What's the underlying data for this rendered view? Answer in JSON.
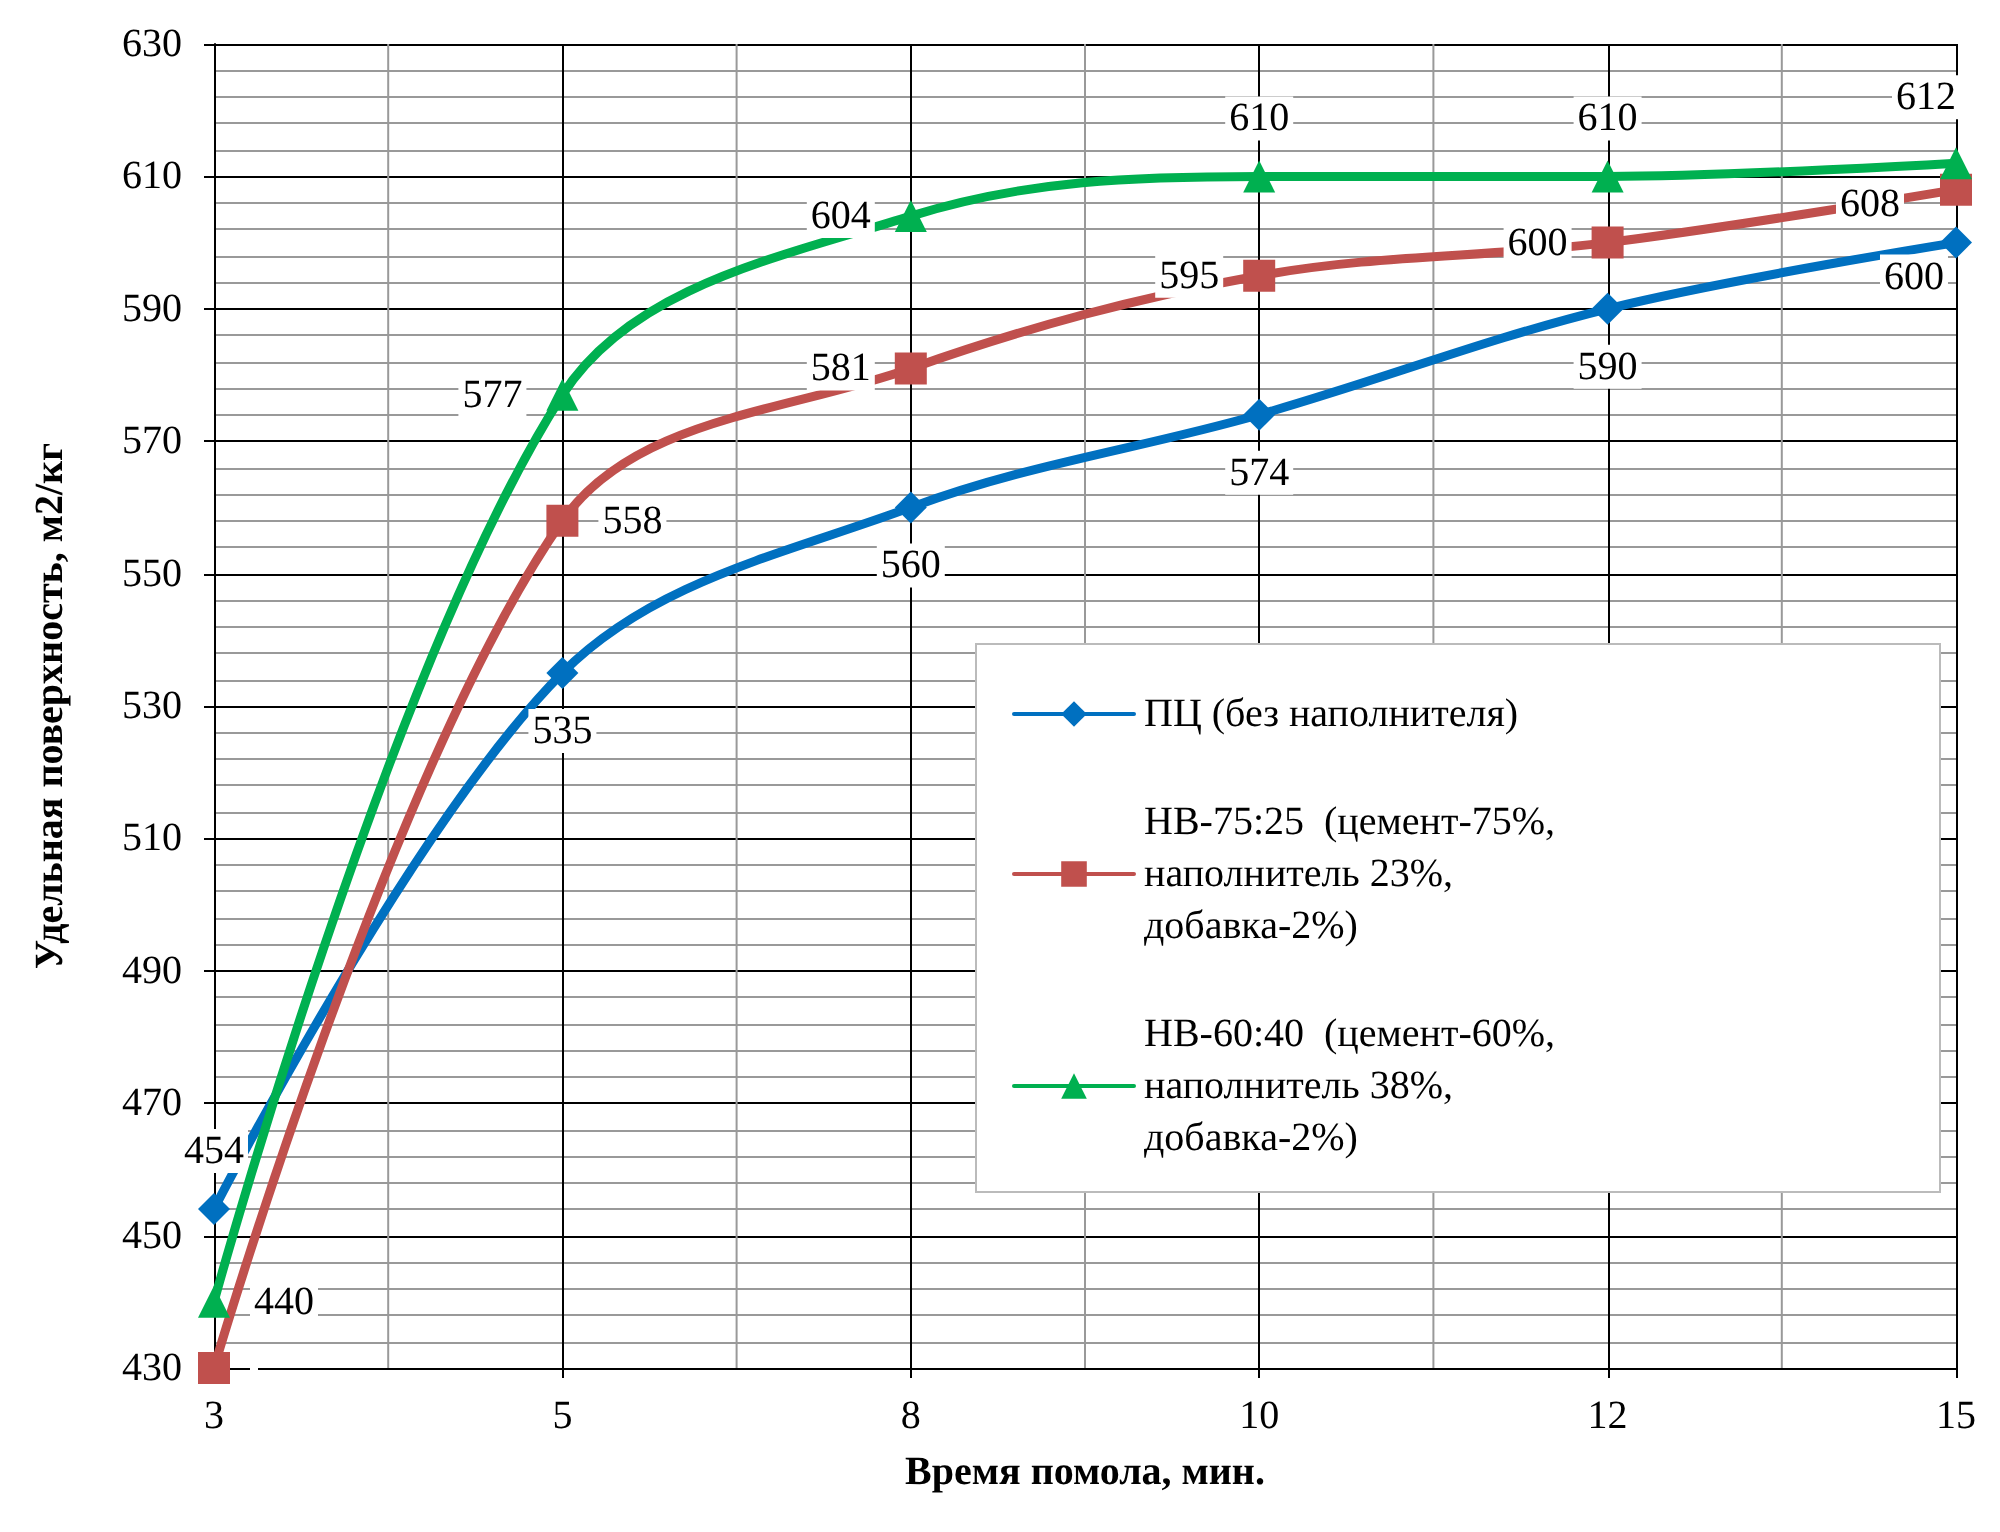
{
  "chart_data": {
    "type": "line",
    "xlabel": "Время помола, мин.",
    "ylabel": "Удельная поверхность, м2/кг",
    "categories": [
      "3",
      "5",
      "8",
      "10",
      "12",
      "15"
    ],
    "series": [
      {
        "name": "ПЦ (без наполнителя)",
        "color": "#0070c0",
        "marker": "diamond",
        "values": [
          454,
          535,
          560,
          574,
          590,
          600
        ],
        "value_labels": [
          "454",
          "535",
          "560",
          "574",
          "590",
          "600"
        ]
      },
      {
        "name": "НВ-75:25  (цемент-75%, наполнитель 23%, добавка-2%)",
        "color": "#c0504d",
        "marker": "square",
        "values": [
          430,
          558,
          581,
          595,
          600,
          608
        ],
        "value_labels": [
          null,
          "558",
          "581",
          "595",
          "600",
          "608"
        ]
      },
      {
        "name": "НВ-60:40  (цемент-60%, наполнитель 38%, добавка-2%)",
        "color": "#00b050",
        "marker": "triangle",
        "values": [
          440,
          577,
          604,
          610,
          610,
          612
        ],
        "value_labels": [
          "440",
          "577",
          "604",
          "610",
          "610",
          "612"
        ]
      }
    ],
    "ylim": [
      430,
      630
    ],
    "yticks": [
      430,
      450,
      470,
      490,
      510,
      530,
      550,
      570,
      590,
      610,
      630
    ],
    "grid": true,
    "legend": "bottom right",
    "line_style": "solid"
  }
}
